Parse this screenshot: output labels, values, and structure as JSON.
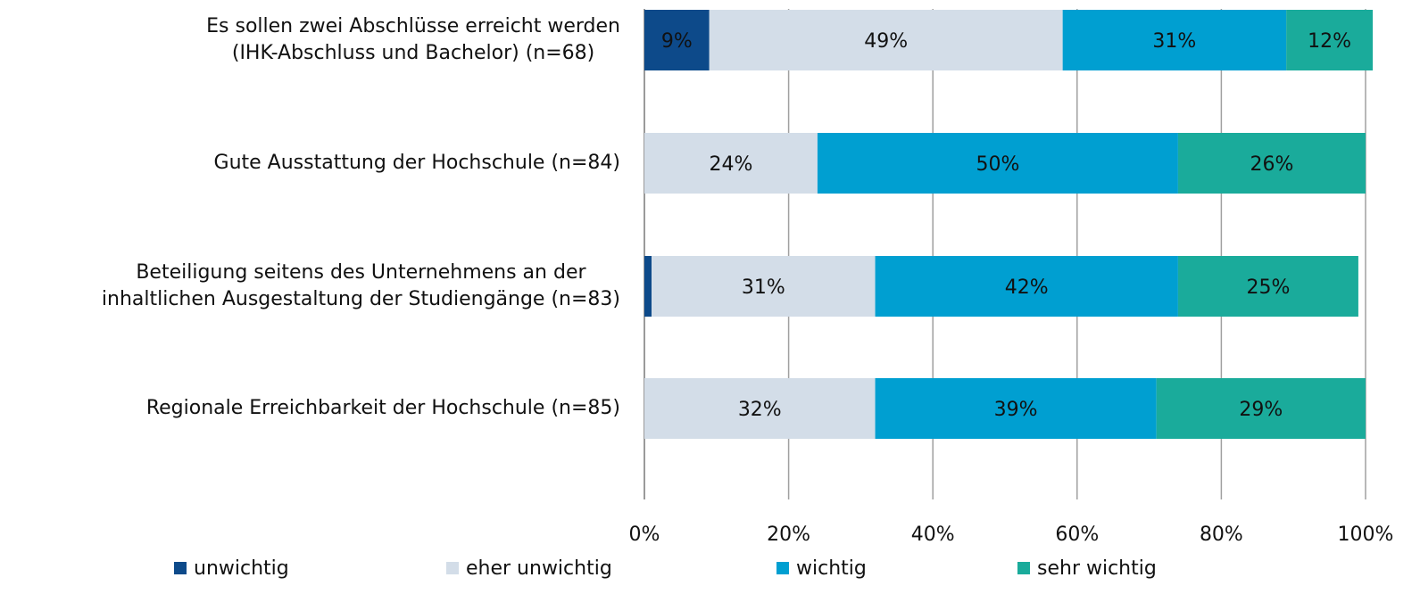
{
  "chart_data": {
    "type": "stacked_barh",
    "categories": [
      "Es sollen zwei Abschlüsse erreicht werden\n(IHK-Abschluss und Bachelor) (n=68)",
      "Gute Ausstattung der Hochschule (n=84)",
      "Beteiligung seitens des Unternehmens an der\ninhaltlichen Ausgestaltung der Studiengänge (n=83)",
      "Regionale Erreichbarkeit der Hochschule (n=85)"
    ],
    "series": [
      {
        "name": "unwichtig",
        "color": "#0d4a8a",
        "values": [
          9,
          0,
          1,
          0
        ],
        "value_labels": [
          "9%",
          null,
          null,
          null
        ]
      },
      {
        "name": "eher unwichtig",
        "color": "#d3dde8",
        "values": [
          49,
          24,
          31,
          32
        ],
        "value_labels": [
          "49%",
          "24%",
          "31%",
          "32%"
        ]
      },
      {
        "name": "wichtig",
        "color": "#009fd1",
        "values": [
          31,
          50,
          42,
          39
        ],
        "value_labels": [
          "31%",
          "50%",
          "42%",
          "39%"
        ]
      },
      {
        "name": "sehr wichtig",
        "color": "#1aab9b",
        "values": [
          12,
          26,
          25,
          29
        ],
        "value_labels": [
          "12%",
          "26%",
          "25%",
          "29%"
        ]
      }
    ],
    "xlim": [
      0,
      100
    ],
    "xticks": [
      {
        "value": 0,
        "label": "0%"
      },
      {
        "value": 20,
        "label": "20%"
      },
      {
        "value": 40,
        "label": "40%"
      },
      {
        "value": 60,
        "label": "60%"
      },
      {
        "value": 80,
        "label": "80%"
      },
      {
        "value": 100,
        "label": "100%"
      }
    ],
    "grid": true
  }
}
